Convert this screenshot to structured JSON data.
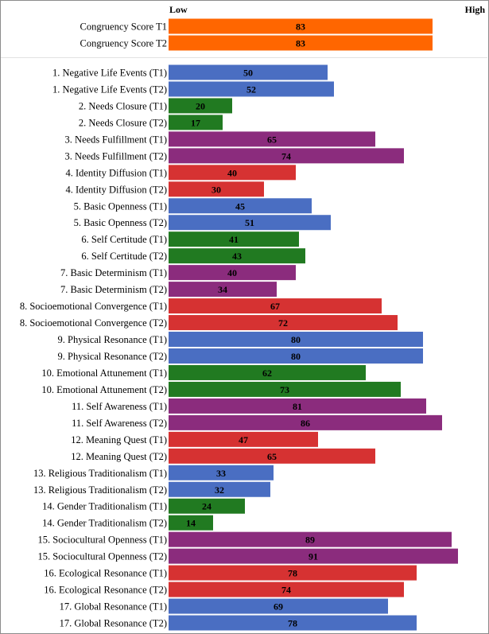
{
  "chart_data": {
    "type": "bar",
    "orientation": "horizontal",
    "scale_labels": {
      "low": "Low",
      "high": "High"
    },
    "xlim": [
      0,
      100
    ],
    "grid": false,
    "legend": "none",
    "congruency": {
      "color": "#FF6600",
      "categories": [
        "Congruency Score T1",
        "Congruency Score T2"
      ],
      "values": [
        83,
        83
      ]
    },
    "scale_colors": [
      "#4A6EC2",
      "#217A21",
      "#8B2C7D",
      "#D63232"
    ],
    "categories": [
      "1. Negative Life Events (T1)",
      "1. Negative Life Events (T2)",
      "2. Needs Closure (T1)",
      "2. Needs Closure (T2)",
      "3. Needs Fulfillment (T1)",
      "3. Needs Fulfillment (T2)",
      "4. Identity Diffusion (T1)",
      "4. Identity Diffusion (T2)",
      "5. Basic Openness (T1)",
      "5. Basic Openness (T2)",
      "6. Self Certitude (T1)",
      "6. Self Certitude (T2)",
      "7. Basic Determinism (T1)",
      "7. Basic Determinism (T2)",
      "8. Socioemotional Convergence (T1)",
      "8. Socioemotional Convergence (T2)",
      "9. Physical Resonance (T1)",
      "9. Physical Resonance (T2)",
      "10. Emotional Attunement (T1)",
      "10. Emotional Attunement (T2)",
      "11. Self Awareness (T1)",
      "11. Self Awareness (T2)",
      "12. Meaning Quest (T1)",
      "12. Meaning Quest (T2)",
      "13. Religious Traditionalism (T1)",
      "13. Religious Traditionalism (T2)",
      "14. Gender Traditionalism (T1)",
      "14. Gender Traditionalism (T2)",
      "15. Sociocultural Openness (T1)",
      "15. Sociocultural Openness (T2)",
      "16. Ecological Resonance (T1)",
      "16. Ecological Resonance (T2)",
      "17. Global Resonance (T1)",
      "17. Global Resonance (T2)"
    ],
    "values": [
      50,
      52,
      20,
      17,
      65,
      74,
      40,
      30,
      45,
      51,
      41,
      43,
      40,
      34,
      67,
      72,
      80,
      80,
      62,
      73,
      81,
      86,
      47,
      65,
      33,
      32,
      24,
      14,
      89,
      91,
      78,
      74,
      69,
      78
    ]
  }
}
